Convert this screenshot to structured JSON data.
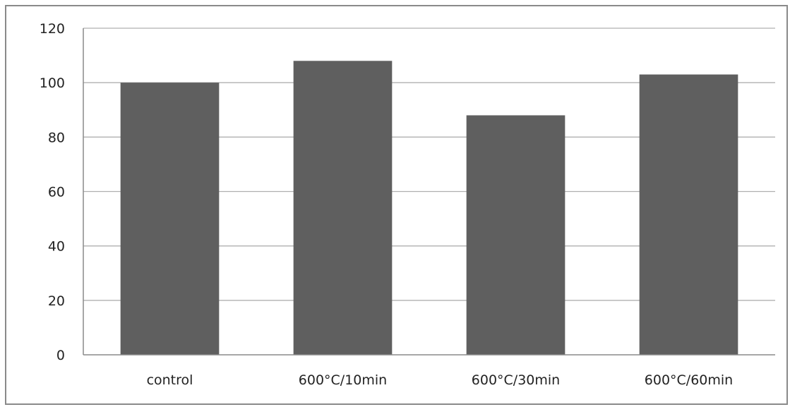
{
  "chart_data": {
    "type": "bar",
    "title": "",
    "xlabel": "",
    "ylabel": "",
    "categories": [
      "control",
      "600°C/10min",
      "600°C/30min",
      "600°C/60min"
    ],
    "values": [
      100,
      108,
      88,
      103
    ],
    "ylim": [
      0,
      120
    ],
    "yticks": [
      "0",
      "20",
      "40",
      "60",
      "80",
      "100",
      "120"
    ],
    "grid": true,
    "legend": "none",
    "bar_color": "#5f5f5f",
    "grid_color": "#b0b0b0",
    "axis_color": "#8a8a8a"
  }
}
